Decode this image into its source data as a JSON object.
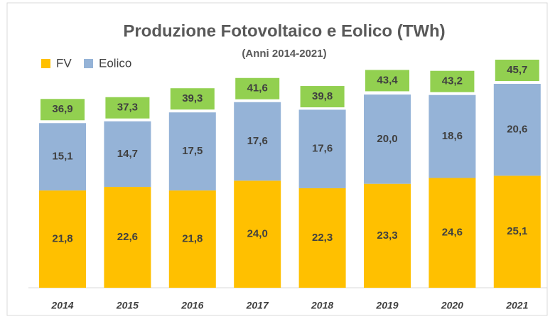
{
  "chart_data": {
    "type": "stacked_bar",
    "title": "Produzione Fotovoltaico e Eolico (TWh)",
    "subtitle": "(Anni 2014-2021)",
    "categories": [
      "2014",
      "2015",
      "2016",
      "2017",
      "2018",
      "2019",
      "2020",
      "2021"
    ],
    "series": [
      {
        "name": "FV",
        "color": "#ffc000",
        "values": [
          21.8,
          22.6,
          21.8,
          24.0,
          22.3,
          23.3,
          24.6,
          25.1
        ],
        "value_labels": [
          "21,8",
          "22,6",
          "21,8",
          "24,0",
          "22,3",
          "23,3",
          "24,6",
          "25,1"
        ]
      },
      {
        "name": "Eolico",
        "color": "#95b3d7",
        "values": [
          15.1,
          14.7,
          17.5,
          17.6,
          17.6,
          20.0,
          18.6,
          20.6
        ],
        "value_labels": [
          "15,1",
          "14,7",
          "17,5",
          "17,6",
          "17,6",
          "20,0",
          "18,6",
          "20,6"
        ]
      }
    ],
    "totals": [
      36.9,
      37.3,
      39.3,
      41.6,
      39.8,
      43.4,
      43.2,
      45.7
    ],
    "total_labels": [
      "36,9",
      "37,3",
      "39,3",
      "41,6",
      "39,8",
      "43,4",
      "43,2",
      "45,7"
    ],
    "total_color": "#92d050"
  }
}
